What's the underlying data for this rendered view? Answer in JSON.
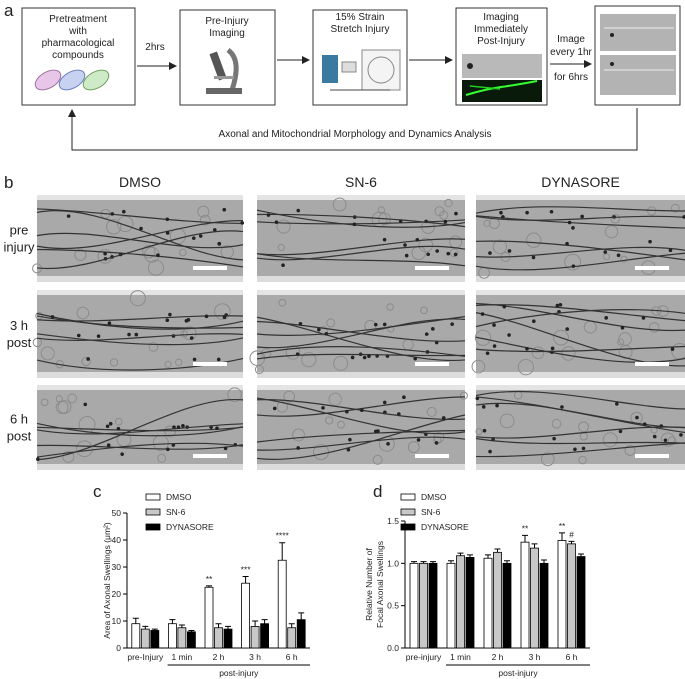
{
  "panel_labels": [
    "a",
    "b",
    "c",
    "d"
  ],
  "panel_a": {
    "steps": [
      {
        "lines": [
          "Pretreatment",
          "with",
          "pharmacological",
          "compounds"
        ]
      },
      {
        "lines": [
          "Pre-Injury",
          "Imaging"
        ]
      },
      {
        "lines": [
          "15% Strain",
          "Stretch Injury"
        ]
      },
      {
        "lines": [
          "Imaging",
          "Immediately",
          "Post-Injury"
        ]
      }
    ],
    "first_arrow_label": "2hrs",
    "repeat_label": [
      "Image",
      "every 1hr"
    ],
    "duration_label": "for 6hrs",
    "feedback_label": "Axonal and Mitochondrial Morphology and Dynamics Analysis"
  },
  "panel_b": {
    "columns": [
      "DMSO",
      "SN-6",
      "DYNASORE"
    ],
    "rows": [
      [
        "pre",
        "injury"
      ],
      [
        "3 h",
        "post"
      ],
      [
        "6 h",
        "post"
      ]
    ]
  },
  "chart_data": [
    {
      "type": "bar",
      "y_label": [
        "Area of Axonal Swellings (μm²)"
      ],
      "categories": [
        "pre-Injury",
        "1 min",
        "2 h",
        "3 h",
        "6 h"
      ],
      "x_group_label": "post-injury",
      "series": [
        {
          "name": "DMSO",
          "color": "#ffffff",
          "values": [
            9,
            9,
            22.5,
            24,
            32.5
          ],
          "errors": [
            2,
            1.5,
            0.5,
            2.5,
            6.5
          ],
          "annotations": [
            null,
            null,
            "**",
            "***",
            "****"
          ]
        },
        {
          "name": "SN-6",
          "color": "#c8c8c8",
          "values": [
            7,
            7.5,
            7.5,
            8,
            7.5
          ],
          "errors": [
            1,
            1,
            1.5,
            2,
            1.5
          ]
        },
        {
          "name": "DYNASORE",
          "color": "#000000",
          "values": [
            6.5,
            6,
            7,
            9,
            10.5
          ],
          "errors": [
            0.5,
            0.5,
            1,
            1.5,
            2.5
          ]
        }
      ],
      "ylim": [
        0,
        50
      ],
      "yticks": [
        0,
        10,
        20,
        30,
        40,
        50
      ],
      "legend": "top-left"
    },
    {
      "type": "bar",
      "y_label": [
        "Relative Number of",
        "Focal Axonal Swellings"
      ],
      "categories": [
        "pre-injury",
        "1 min",
        "2 h",
        "3 h",
        "6 h"
      ],
      "x_group_label": "post-injury",
      "series": [
        {
          "name": "DMSO",
          "color": "#ffffff",
          "values": [
            1.0,
            1.0,
            1.06,
            1.25,
            1.27
          ],
          "errors": [
            0.02,
            0.03,
            0.04,
            0.08,
            0.09
          ],
          "annotations": [
            null,
            null,
            null,
            "**",
            "**"
          ]
        },
        {
          "name": "SN-6",
          "color": "#c8c8c8",
          "values": [
            1.0,
            1.09,
            1.13,
            1.18,
            1.23
          ],
          "errors": [
            0.02,
            0.03,
            0.04,
            0.05,
            0.03
          ],
          "annotations": [
            null,
            null,
            null,
            null,
            "#"
          ]
        },
        {
          "name": "DYNASORE",
          "color": "#000000",
          "values": [
            1.0,
            1.07,
            1.0,
            1.0,
            1.08
          ],
          "errors": [
            0.02,
            0.03,
            0.03,
            0.04,
            0.03
          ]
        }
      ],
      "ylim": [
        0,
        1.5
      ],
      "yticks": [
        {
          "value": 0,
          "label": "0.0"
        },
        0.5,
        {
          "value": 1,
          "label": "1.0"
        },
        1.5
      ],
      "legend": "top-left"
    }
  ]
}
